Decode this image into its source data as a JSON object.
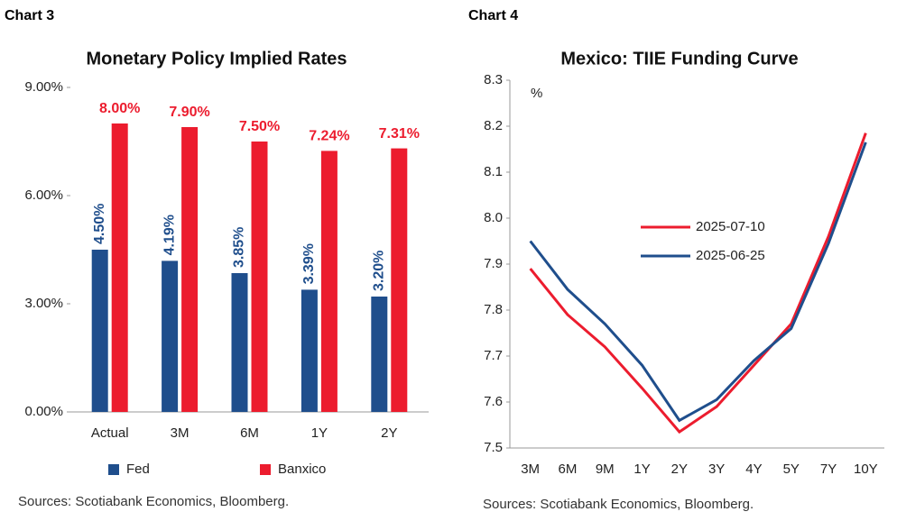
{
  "chart_data": [
    {
      "type": "bar",
      "header": "Chart 3",
      "title": "Monetary Policy Implied Rates",
      "source": "Sources: Scotiabank Economics, Bloomberg.",
      "categories": [
        "Actual",
        "3M",
        "6M",
        "1Y",
        "2Y"
      ],
      "series": [
        {
          "name": "Fed",
          "color": "#1f4e8c",
          "values": [
            4.5,
            4.19,
            3.85,
            3.39,
            3.2
          ],
          "value_labels": [
            "4.50%",
            "4.19%",
            "3.85%",
            "3.39%",
            "3.20%"
          ]
        },
        {
          "name": "Banxico",
          "color": "#ec1c2e",
          "values": [
            8.0,
            7.9,
            7.5,
            7.24,
            7.31
          ],
          "value_labels": [
            "8.00%",
            "7.90%",
            "7.50%",
            "7.24%",
            "7.31%"
          ]
        }
      ],
      "ylim": [
        0,
        9
      ],
      "yticks": [
        {
          "value": 0,
          "label": "0.00%"
        },
        {
          "value": 3,
          "label": "3.00%"
        },
        {
          "value": 6,
          "label": "6.00%"
        },
        {
          "value": 9,
          "label": "9.00%"
        }
      ],
      "legend": "bottom"
    },
    {
      "type": "line",
      "header": "Chart 4",
      "title": "Mexico: TIIE Funding Curve",
      "source": "Sources: Scotiabank Economics, Bloomberg.",
      "y_label": "%",
      "categories": [
        "3M",
        "6M",
        "9M",
        "1Y",
        "2Y",
        "3Y",
        "4Y",
        "5Y",
        "7Y",
        "10Y"
      ],
      "series": [
        {
          "name": "2025-07-10",
          "color": "#ec1c2e",
          "values": [
            7.89,
            7.79,
            7.72,
            7.63,
            7.535,
            7.59,
            7.68,
            7.77,
            7.96,
            8.185
          ]
        },
        {
          "name": "2025-06-25",
          "color": "#1f4e8c",
          "values": [
            7.95,
            7.845,
            7.77,
            7.68,
            7.56,
            7.605,
            7.69,
            7.76,
            7.945,
            8.165
          ]
        }
      ],
      "ylim": [
        7.5,
        8.3
      ],
      "yticks": [
        7.5,
        7.6,
        7.7,
        7.8,
        7.9,
        {
          "value": 8.0,
          "label": "8.0"
        },
        8.1,
        8.2,
        8.3
      ],
      "legend": "center"
    }
  ]
}
